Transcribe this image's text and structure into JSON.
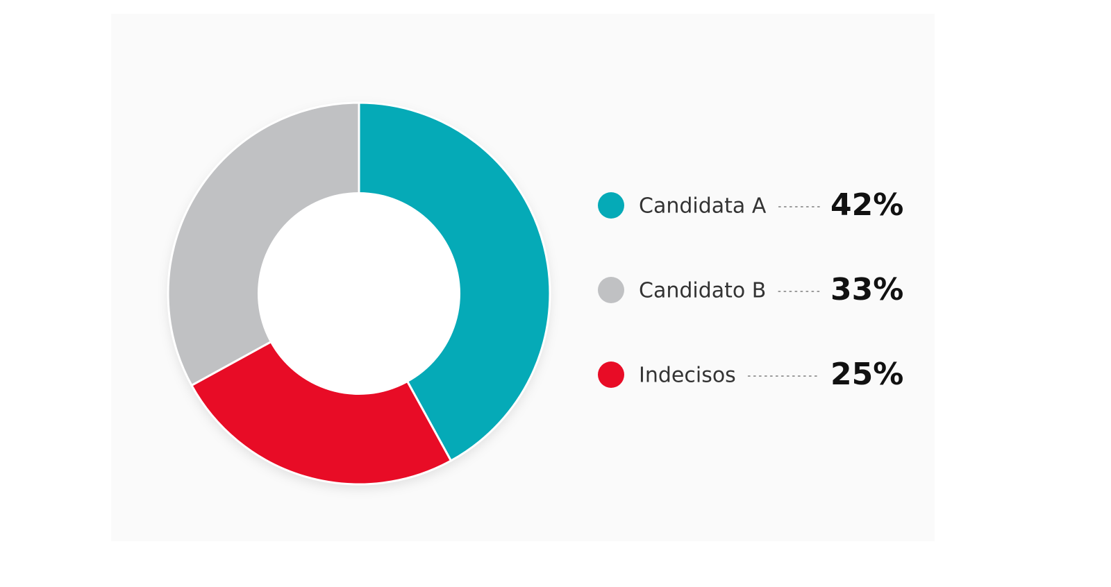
{
  "chart_data": {
    "type": "donut",
    "categories": [
      "Candidata A",
      "Candidato B",
      "Indecisos"
    ],
    "values": [
      42,
      33,
      25
    ],
    "value_labels": [
      "42%",
      "33%",
      "25%"
    ],
    "colors": [
      "#05aab7",
      "#c0c1c3",
      "#e80c26"
    ]
  }
}
